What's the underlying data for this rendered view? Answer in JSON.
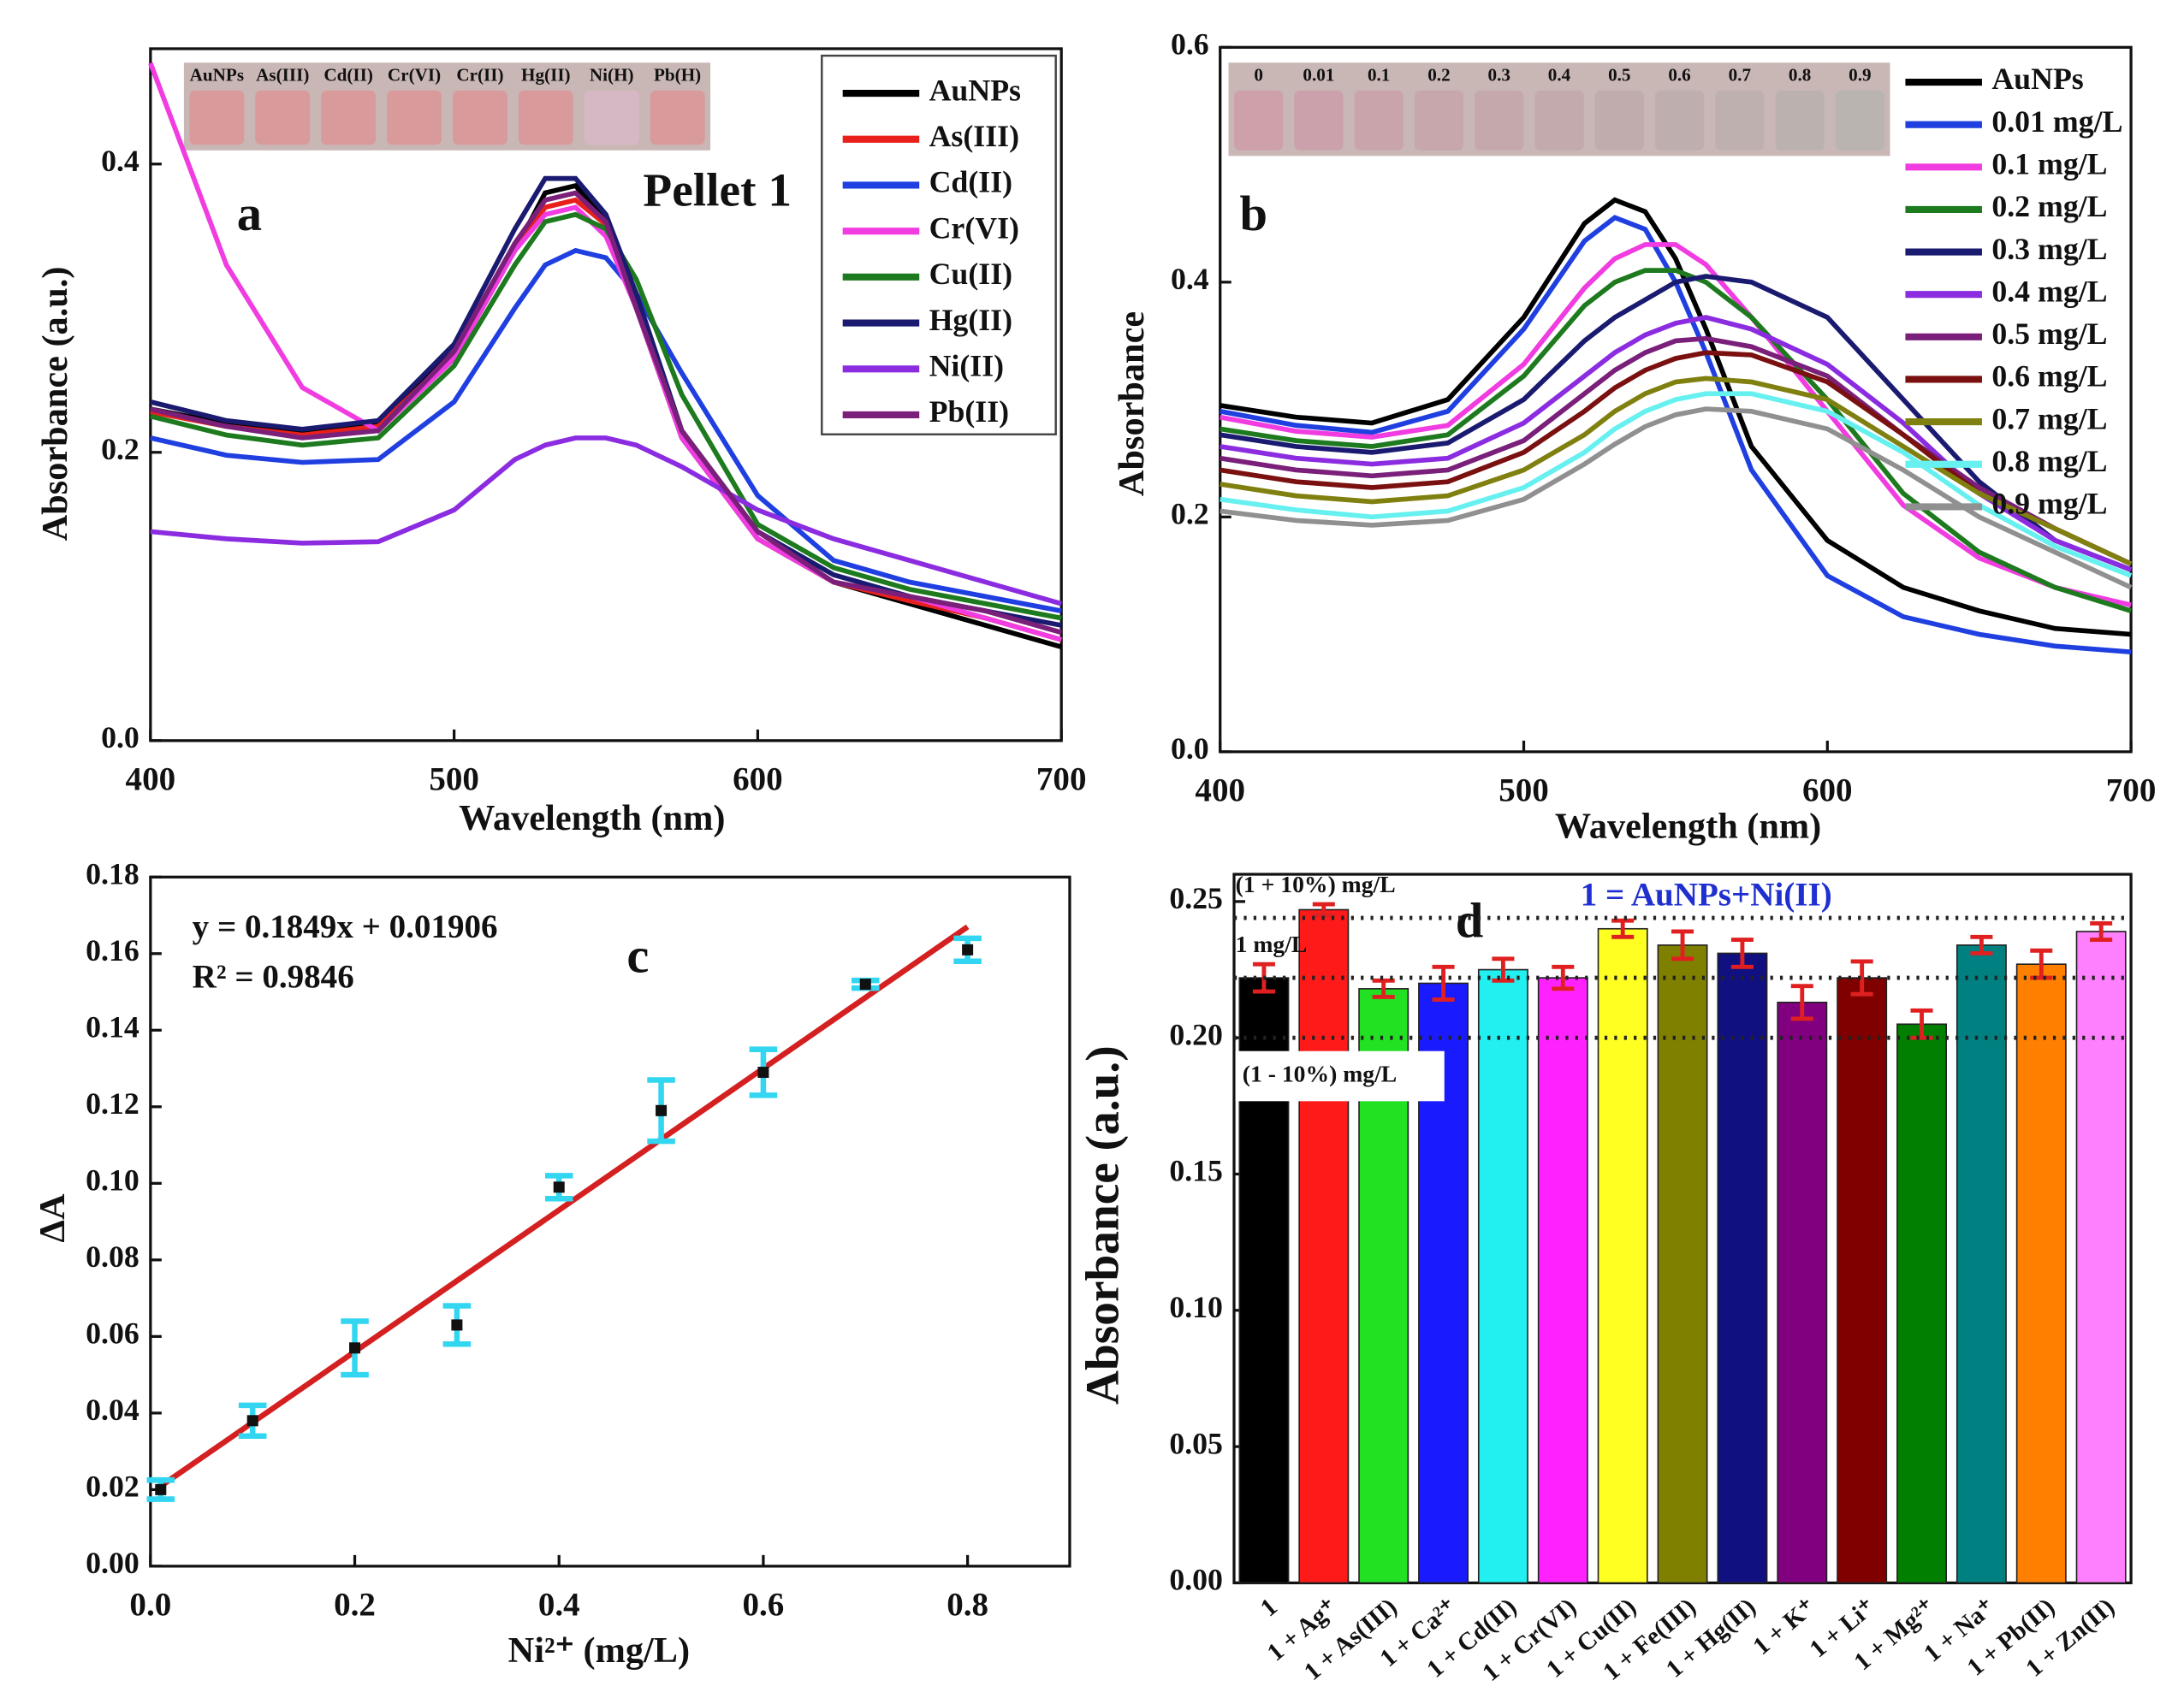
{
  "chart_data": [
    {
      "type": "line",
      "panel_label": "a",
      "title": "Pellet 1",
      "x_label": "Wavelength (nm)",
      "y_label": "Absorbance (a.u.)",
      "inset_labels": [
        "AuNPs",
        "As(III)",
        "Cd(II)",
        "Cr(VI)",
        "Cr(II)",
        "Hg(II)",
        "Ni(H)",
        "Pb(H)"
      ],
      "x": [
        400,
        425,
        450,
        475,
        500,
        520,
        530,
        540,
        550,
        560,
        575,
        600,
        625,
        650,
        675,
        700
      ],
      "xlim": [
        400,
        700
      ],
      "ylim": [
        0,
        0.48
      ],
      "xticks": [
        400,
        500,
        600,
        700
      ],
      "yticks": [
        {
          "value": 0,
          "label": "0.0"
        },
        0.2,
        0.4
      ],
      "legend": "upper right",
      "series": [
        {
          "name": "AuNPs",
          "color": "#000000",
          "values": [
            0.23,
            0.22,
            0.215,
            0.22,
            0.27,
            0.34,
            0.38,
            0.385,
            0.36,
            0.3,
            0.21,
            0.14,
            0.11,
            0.095,
            0.08,
            0.065
          ]
        },
        {
          "name": "As(III)",
          "color": "#e8201c",
          "values": [
            0.228,
            0.218,
            0.212,
            0.218,
            0.268,
            0.34,
            0.37,
            0.375,
            0.358,
            0.305,
            0.215,
            0.14,
            0.11,
            0.097,
            0.085,
            0.07
          ]
        },
        {
          "name": "Cd(II)",
          "color": "#1f3fe0",
          "values": [
            0.21,
            0.198,
            0.193,
            0.195,
            0.235,
            0.3,
            0.33,
            0.34,
            0.335,
            0.31,
            0.255,
            0.17,
            0.125,
            0.11,
            0.1,
            0.09
          ]
        },
        {
          "name": "Cr(VI)",
          "color": "#f03ce0",
          "values": [
            0.47,
            0.33,
            0.245,
            0.215,
            0.265,
            0.34,
            0.365,
            0.37,
            0.35,
            0.3,
            0.21,
            0.14,
            0.11,
            0.1,
            0.085,
            0.07
          ]
        },
        {
          "name": "Cu(II)",
          "color": "#1e7a1e",
          "values": [
            0.225,
            0.212,
            0.205,
            0.21,
            0.26,
            0.33,
            0.36,
            0.365,
            0.355,
            0.32,
            0.24,
            0.15,
            0.12,
            0.105,
            0.095,
            0.085
          ]
        },
        {
          "name": "Hg(II)",
          "color": "#1a1a70",
          "values": [
            0.235,
            0.222,
            0.216,
            0.222,
            0.275,
            0.355,
            0.39,
            0.39,
            0.365,
            0.31,
            0.215,
            0.145,
            0.115,
            0.1,
            0.09,
            0.08
          ]
        },
        {
          "name": "Ni(II)",
          "color": "#8b2ce0",
          "values": [
            0.145,
            0.14,
            0.137,
            0.138,
            0.16,
            0.195,
            0.205,
            0.21,
            0.21,
            0.205,
            0.19,
            0.16,
            0.14,
            0.125,
            0.11,
            0.095
          ]
        },
        {
          "name": "Pb(II)",
          "color": "#7a1f7a",
          "values": [
            0.23,
            0.218,
            0.21,
            0.215,
            0.27,
            0.345,
            0.375,
            0.38,
            0.36,
            0.3,
            0.215,
            0.145,
            0.11,
            0.1,
            0.09,
            0.075
          ]
        }
      ]
    },
    {
      "type": "line",
      "panel_label": "b",
      "x_label": "Wavelength (nm)",
      "y_label": "Absorbance",
      "inset_labels": [
        "0",
        "0.01",
        "0.1",
        "0.2",
        "0.3",
        "0.4",
        "0.5",
        "0.6",
        "0.7",
        "0.8",
        "0.9"
      ],
      "x": [
        400,
        425,
        450,
        475,
        500,
        520,
        530,
        540,
        550,
        560,
        575,
        600,
        625,
        650,
        675,
        700
      ],
      "xlim": [
        400,
        700
      ],
      "ylim": [
        0,
        0.6
      ],
      "xticks": [
        400,
        500,
        600,
        700
      ],
      "yticks": [
        {
          "value": 0,
          "label": "0.0"
        },
        0.2,
        0.4,
        0.6
      ],
      "legend": "right",
      "series": [
        {
          "name": "AuNPs",
          "color": "#000000",
          "values": [
            0.295,
            0.285,
            0.28,
            0.3,
            0.37,
            0.45,
            0.47,
            0.46,
            0.42,
            0.36,
            0.26,
            0.18,
            0.14,
            0.12,
            0.105,
            0.1
          ]
        },
        {
          "name": "0.01 mg/L",
          "color": "#1f3fe0",
          "values": [
            0.29,
            0.278,
            0.272,
            0.29,
            0.36,
            0.435,
            0.455,
            0.445,
            0.4,
            0.34,
            0.24,
            0.15,
            0.115,
            0.1,
            0.09,
            0.085
          ]
        },
        {
          "name": "0.1 mg/L",
          "color": "#f03ce0",
          "values": [
            0.285,
            0.273,
            0.268,
            0.278,
            0.33,
            0.395,
            0.42,
            0.432,
            0.432,
            0.415,
            0.37,
            0.29,
            0.21,
            0.165,
            0.14,
            0.125
          ]
        },
        {
          "name": "0.2 mg/L",
          "color": "#1e7a1e",
          "values": [
            0.275,
            0.265,
            0.26,
            0.27,
            0.32,
            0.38,
            0.4,
            0.41,
            0.41,
            0.4,
            0.37,
            0.3,
            0.22,
            0.17,
            0.14,
            0.12
          ]
        },
        {
          "name": "0.3 mg/L",
          "color": "#1a1a70",
          "values": [
            0.27,
            0.26,
            0.255,
            0.263,
            0.3,
            0.35,
            0.37,
            0.385,
            0.4,
            0.405,
            0.4,
            0.37,
            0.3,
            0.23,
            0.18,
            0.155
          ]
        },
        {
          "name": "0.4 mg/L",
          "color": "#8b2ce0",
          "values": [
            0.26,
            0.25,
            0.245,
            0.25,
            0.28,
            0.32,
            0.34,
            0.355,
            0.365,
            0.37,
            0.36,
            0.33,
            0.28,
            0.22,
            0.18,
            0.155
          ]
        },
        {
          "name": "0.5 mg/L",
          "color": "#7a1f7a",
          "values": [
            0.25,
            0.24,
            0.235,
            0.24,
            0.265,
            0.305,
            0.325,
            0.34,
            0.35,
            0.352,
            0.345,
            0.32,
            0.27,
            0.225,
            0.19,
            0.16
          ]
        },
        {
          "name": "0.6 mg/L",
          "color": "#7a1010",
          "values": [
            0.24,
            0.23,
            0.225,
            0.23,
            0.255,
            0.29,
            0.31,
            0.325,
            0.335,
            0.34,
            0.338,
            0.315,
            0.27,
            0.22,
            0.19,
            0.16
          ]
        },
        {
          "name": "0.7 mg/L",
          "color": "#808010",
          "values": [
            0.228,
            0.218,
            0.213,
            0.218,
            0.24,
            0.27,
            0.29,
            0.305,
            0.315,
            0.318,
            0.315,
            0.3,
            0.26,
            0.22,
            0.19,
            0.16
          ]
        },
        {
          "name": "0.8 mg/L",
          "color": "#66f0f0",
          "values": [
            0.215,
            0.206,
            0.2,
            0.205,
            0.225,
            0.255,
            0.275,
            0.29,
            0.3,
            0.305,
            0.305,
            0.29,
            0.255,
            0.21,
            0.175,
            0.15
          ]
        },
        {
          "name": "0.9 mg/L",
          "color": "#909090",
          "values": [
            0.205,
            0.197,
            0.193,
            0.197,
            0.215,
            0.245,
            0.262,
            0.277,
            0.287,
            0.292,
            0.29,
            0.275,
            0.24,
            0.2,
            0.17,
            0.14
          ]
        }
      ]
    },
    {
      "type": "scatter",
      "panel_label": "c",
      "x_label": "Ni²⁺ (mg/L)",
      "y_label": "ΔA",
      "equation": "y = 0.1849x + 0.01906",
      "r_squared": "R² = 0.9846",
      "x": [
        0.01,
        0.1,
        0.2,
        0.3,
        0.4,
        0.5,
        0.6,
        0.7,
        0.8
      ],
      "values": [
        0.02,
        0.038,
        0.057,
        0.063,
        0.099,
        0.119,
        0.129,
        0.152,
        0.161
      ],
      "errors": [
        0.0025,
        0.004,
        0.007,
        0.005,
        0.003,
        0.008,
        0.006,
        0.001,
        0.003
      ],
      "color": "#111111",
      "error_color": "#33d6f0",
      "fit": {
        "x": [
          0.01,
          0.8
        ],
        "y": [
          0.0209,
          0.167
        ],
        "color": "#d42020"
      },
      "xlim": [
        0,
        0.9
      ],
      "ylim": [
        0,
        0.18
      ],
      "xticks": [
        {
          "value": 0,
          "label": "0.0"
        },
        0.2,
        0.4,
        0.6,
        0.8
      ],
      "yticks": [
        {
          "value": 0,
          "label": "0.00"
        },
        0.02,
        0.04,
        0.06,
        0.08,
        {
          "value": 0.1,
          "label": "0.10"
        },
        0.12,
        0.14,
        0.16,
        0.18
      ]
    },
    {
      "type": "bar",
      "panel_label": "d",
      "y_label": "Absorbance (a.u.)",
      "note": "1 = AuNPs+Ni(II)",
      "categories": [
        "1",
        "1 + Ag⁺",
        "1 + As(III)",
        "1 + Ca²⁺",
        "1 + Cd(II)",
        "1 + Cr(VI)",
        "1 + Cu(II)",
        "1 + Fe(III)",
        "1 + Hg(II)",
        "1 + K⁺",
        "1 + Li⁺",
        "1 + Mg²⁺",
        "1 + Na⁺",
        "1 + Pb(II)",
        "1 + Zn(II)"
      ],
      "values": [
        0.222,
        0.247,
        0.218,
        0.22,
        0.225,
        0.222,
        0.24,
        0.234,
        0.231,
        0.213,
        0.222,
        0.205,
        0.234,
        0.227,
        0.239
      ],
      "errors": [
        0.005,
        0.002,
        0.003,
        0.006,
        0.004,
        0.004,
        0.003,
        0.005,
        0.005,
        0.006,
        0.006,
        0.005,
        0.003,
        0.005,
        0.003
      ],
      "colors": [
        "#000000",
        "#ff1a1a",
        "#22e022",
        "#1a1aff",
        "#22f0f0",
        "#ff22ff",
        "#ffff22",
        "#808000",
        "#101080",
        "#800080",
        "#800000",
        "#007f00",
        "#008080",
        "#ff8000",
        "#ff80ff"
      ],
      "error_color": "#e02020",
      "reference_lines": [
        {
          "value": 0.244,
          "label": "(1 + 10%) mg/L"
        },
        {
          "value": 0.222,
          "label": "1 mg/L"
        },
        {
          "value": 0.2,
          "label": "(1 - 10%) mg/L"
        }
      ],
      "ylim": [
        0,
        0.26
      ],
      "yticks": [
        {
          "value": 0,
          "label": "0.00"
        },
        0.05,
        {
          "value": 0.1,
          "label": "0.10"
        },
        0.15,
        {
          "value": 0.2,
          "label": "0.20"
        },
        0.25
      ]
    }
  ]
}
